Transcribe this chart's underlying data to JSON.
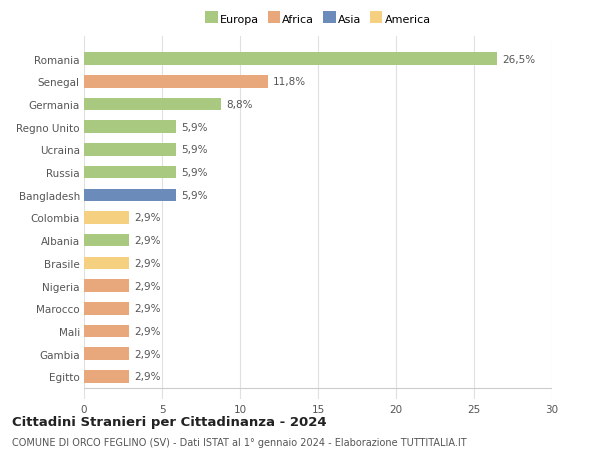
{
  "categories": [
    "Romania",
    "Senegal",
    "Germania",
    "Regno Unito",
    "Ucraina",
    "Russia",
    "Bangladesh",
    "Colombia",
    "Albania",
    "Brasile",
    "Nigeria",
    "Marocco",
    "Mali",
    "Gambia",
    "Egitto"
  ],
  "values": [
    26.5,
    11.8,
    8.8,
    5.9,
    5.9,
    5.9,
    5.9,
    2.9,
    2.9,
    2.9,
    2.9,
    2.9,
    2.9,
    2.9,
    2.9
  ],
  "labels": [
    "26,5%",
    "11,8%",
    "8,8%",
    "5,9%",
    "5,9%",
    "5,9%",
    "5,9%",
    "2,9%",
    "2,9%",
    "2,9%",
    "2,9%",
    "2,9%",
    "2,9%",
    "2,9%",
    "2,9%"
  ],
  "continents": [
    "Europa",
    "Africa",
    "Europa",
    "Europa",
    "Europa",
    "Europa",
    "Asia",
    "America",
    "Europa",
    "America",
    "Africa",
    "Africa",
    "Africa",
    "Africa",
    "Africa"
  ],
  "continent_colors": {
    "Europa": "#a8c97f",
    "Africa": "#e8a87c",
    "Asia": "#6b8cba",
    "America": "#f5d080"
  },
  "legend_order": [
    "Europa",
    "Africa",
    "Asia",
    "America"
  ],
  "title": "Cittadini Stranieri per Cittadinanza - 2024",
  "subtitle": "COMUNE DI ORCO FEGLINO (SV) - Dati ISTAT al 1° gennaio 2024 - Elaborazione TUTTITALIA.IT",
  "xlim": [
    0,
    30
  ],
  "xticks": [
    0,
    5,
    10,
    15,
    20,
    25,
    30
  ],
  "background_color": "#ffffff",
  "grid_color": "#e0e0e0",
  "bar_height": 0.55,
  "label_fontsize": 7.5,
  "tick_fontsize": 7.5,
  "title_fontsize": 9.5,
  "subtitle_fontsize": 7.0
}
